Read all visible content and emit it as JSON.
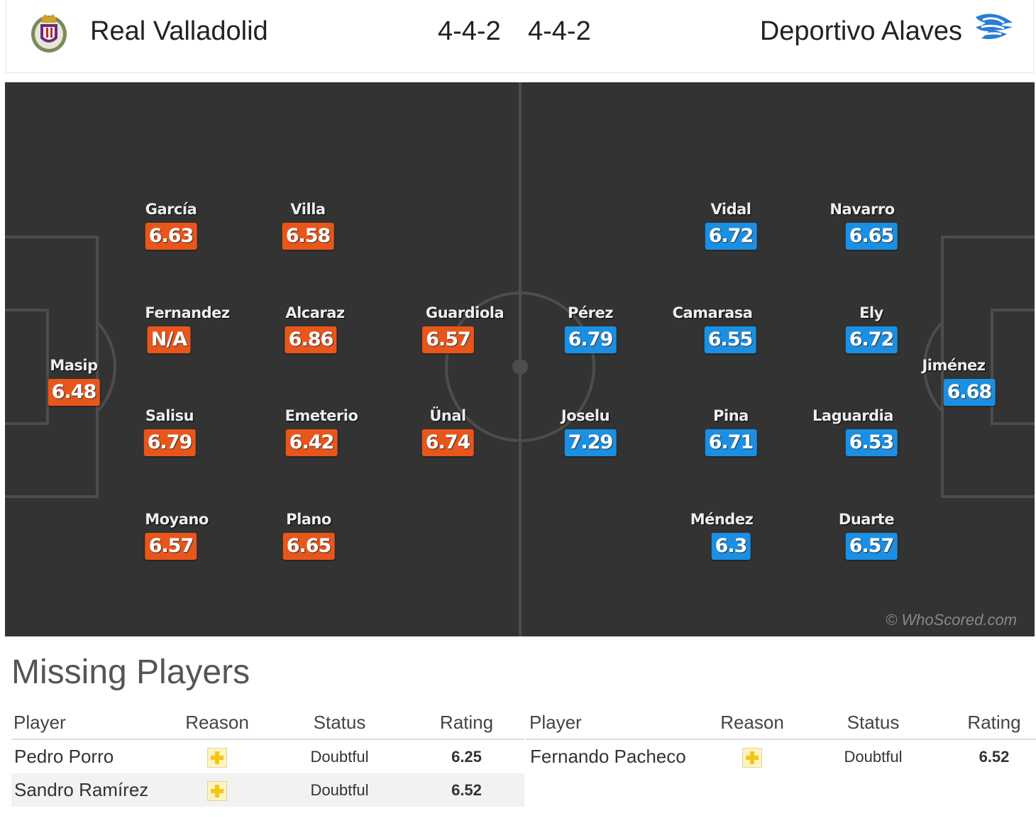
{
  "header": {
    "home_team": "Real Valladolid",
    "home_formation": "4-4-2",
    "away_formation": "4-4-2",
    "away_team": "Deportivo Alaves"
  },
  "colors": {
    "home": "#e8561b",
    "away": "#1a8fe3",
    "pitch": "#333333"
  },
  "home_players": [
    {
      "name": "García",
      "rating": "6.63"
    },
    {
      "name": "Villa",
      "rating": "6.58"
    },
    {
      "name": "Fernandez",
      "rating": "N/A"
    },
    {
      "name": "Alcaraz",
      "rating": "6.86"
    },
    {
      "name": "Guardiola",
      "rating": "6.57"
    },
    {
      "name": "Masip",
      "rating": "6.48"
    },
    {
      "name": "Salisu",
      "rating": "6.79"
    },
    {
      "name": "Emeterio",
      "rating": "6.42"
    },
    {
      "name": "Ünal",
      "rating": "6.74"
    },
    {
      "name": "Moyano",
      "rating": "6.57"
    },
    {
      "name": "Plano",
      "rating": "6.65"
    }
  ],
  "away_players": [
    {
      "name": "Vidal",
      "rating": "6.72"
    },
    {
      "name": "Navarro",
      "rating": "6.65"
    },
    {
      "name": "Pérez",
      "rating": "6.79"
    },
    {
      "name": "Camarasa",
      "rating": "6.55"
    },
    {
      "name": "Ely",
      "rating": "6.72"
    },
    {
      "name": "Jiménez",
      "rating": "6.68"
    },
    {
      "name": "Joselu",
      "rating": "7.29"
    },
    {
      "name": "Pina",
      "rating": "6.71"
    },
    {
      "name": "Laguardia",
      "rating": "6.53"
    },
    {
      "name": "Méndez",
      "rating": "6.3"
    },
    {
      "name": "Duarte",
      "rating": "6.57"
    }
  ],
  "watermark": "© WhoScored.com",
  "missing": {
    "title": "Missing Players",
    "columns": [
      "Player",
      "Reason",
      "Status",
      "Rating"
    ],
    "home": [
      {
        "player": "Pedro Porro",
        "reason_icon": "injury-icon",
        "status": "Doubtful",
        "rating": "6.25"
      },
      {
        "player": "Sandro Ramírez",
        "reason_icon": "injury-icon",
        "status": "Doubtful",
        "rating": "6.52"
      }
    ],
    "away": [
      {
        "player": "Fernando Pacheco",
        "reason_icon": "injury-icon",
        "status": "Doubtful",
        "rating": "6.52"
      }
    ]
  }
}
